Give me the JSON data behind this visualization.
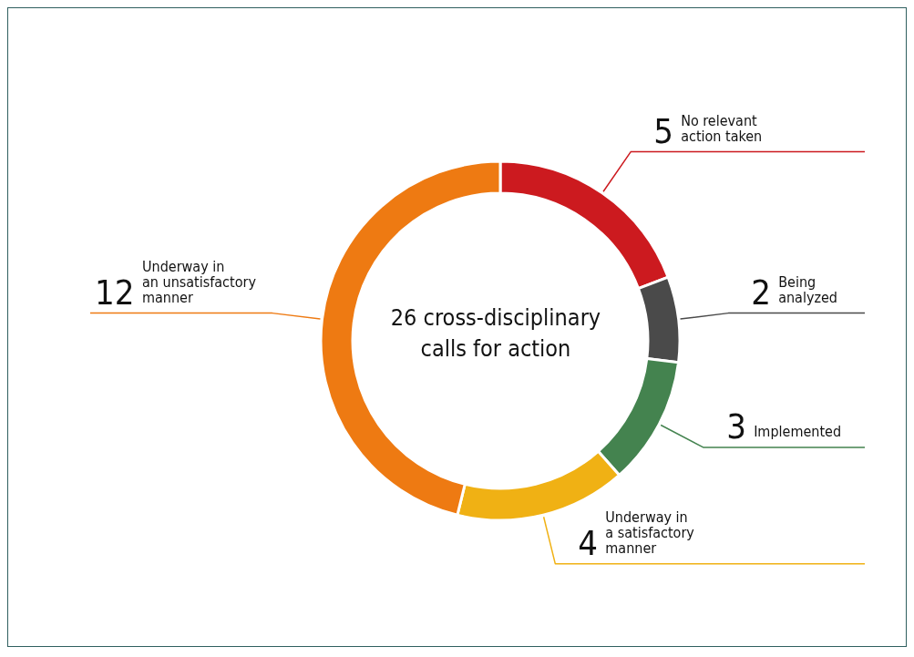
{
  "chart_data": {
    "type": "donut",
    "title": "26 cross-disciplinary calls for action",
    "categories": [
      "No relevant action taken",
      "Being analyzed",
      "Implemented",
      "Underway in a satisfactory manner",
      "Underway in an unsatisfactory manner"
    ],
    "values": [
      5,
      2,
      3,
      4,
      12
    ],
    "colors": [
      "#cc1a1f",
      "#4a4a4a",
      "#44834f",
      "#f0b114",
      "#ee7a12"
    ],
    "data_labels": true
  }
}
